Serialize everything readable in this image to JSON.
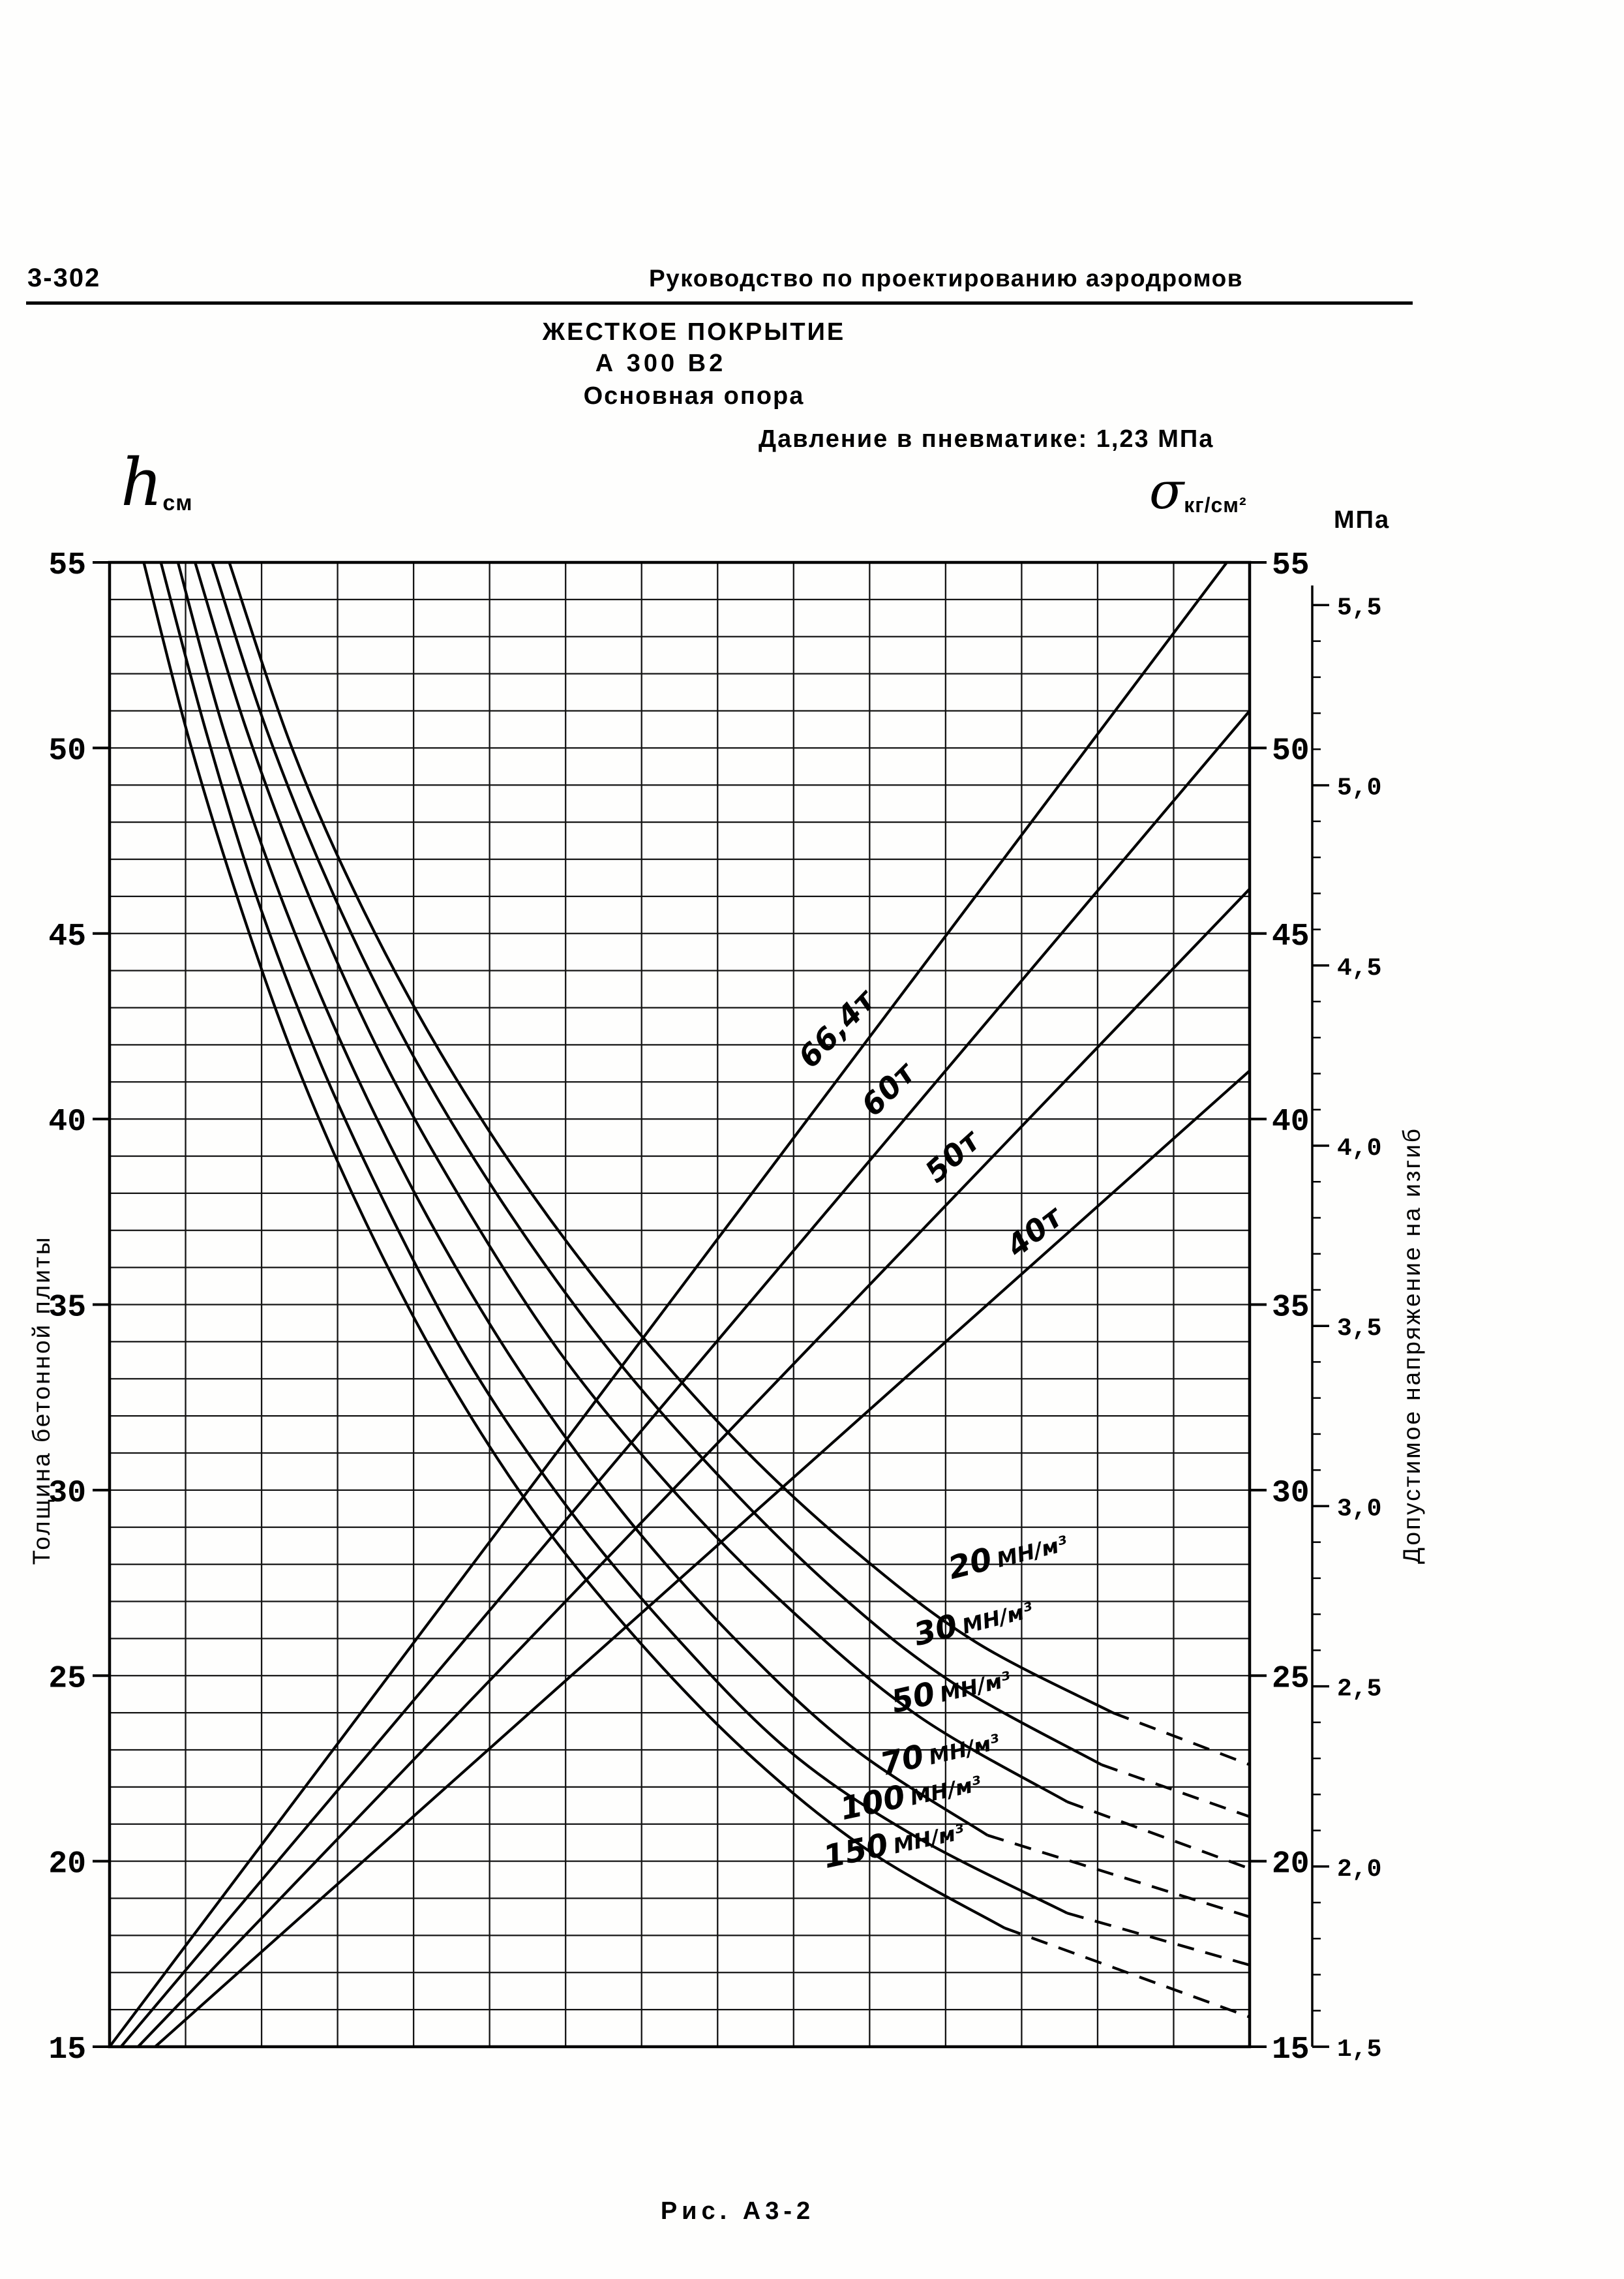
{
  "page": {
    "number": "3-302",
    "doc_title": "Руководство по проектированию аэродромов",
    "caption": "Рис. А3-2"
  },
  "titles": {
    "surface": "ЖЕСТКОЕ ПОКРЫТИЕ",
    "aircraft": "А 300 В2",
    "gear": "Основная опора",
    "pressure": "Давление в пневматике: 1,23 МПа"
  },
  "axes": {
    "left_symbol": "h",
    "left_symbol_unit": "см",
    "left_title": "Толщина бетонной плиты",
    "right_symbol": "σ",
    "right_symbol_unit": "кг/см²",
    "mpa_unit": "МПа",
    "right_title": "Допустимое напряжение на изгиб"
  },
  "chart_data": {
    "type": "line",
    "title": "Номограмма: жесткое покрытие А 300 В2, основная опора, давление в пневматике 1,23 МПа",
    "x": {
      "gridline_columns": 15,
      "tick_labels_visible": false
    },
    "y_left": {
      "label": "Толщина бетонной плиты h, см",
      "min": 15,
      "max": 55,
      "major_step": 5,
      "minor_step": 1
    },
    "y_right": {
      "label": "Допустимое напряжение на изгиб σ, кг/см²",
      "min": 15,
      "max": 55,
      "major_step": 5
    },
    "y_mpa": {
      "label": "МПа",
      "min": 1.5,
      "max": 5.5,
      "major_step": 0.5,
      "minor_step": 0.1,
      "map": {
        "v0": 1.5,
        "h0": 15.0,
        "v1": 5.5,
        "h1": 53.85
      }
    },
    "load_lines": [
      {
        "label": "66,4т",
        "points": [
          [
            0,
            15
          ],
          [
            98,
            55
          ]
        ],
        "label_pos": {
          "u": 62,
          "h": 41.2,
          "angle": -46
        }
      },
      {
        "label": "60т",
        "points": [
          [
            1,
            15
          ],
          [
            100,
            51
          ]
        ],
        "label_pos": {
          "u": 67.5,
          "h": 39.9,
          "angle": -45
        }
      },
      {
        "label": "50т",
        "points": [
          [
            2.5,
            15
          ],
          [
            100,
            46.2
          ]
        ],
        "label_pos": {
          "u": 73,
          "h": 38.1,
          "angle": -42
        }
      },
      {
        "label": "40т",
        "points": [
          [
            4,
            15
          ],
          [
            100,
            41.3
          ]
        ],
        "label_pos": {
          "u": 80,
          "h": 36.1,
          "angle": -38
        }
      }
    ],
    "soil_curves": [
      {
        "label": "20 МН/м³",
        "points": [
          [
            10.5,
            55
          ],
          [
            16,
            50
          ],
          [
            22,
            45.8
          ],
          [
            29,
            41.8
          ],
          [
            37,
            38
          ],
          [
            46,
            34.4
          ],
          [
            56,
            31
          ],
          [
            66,
            28.2
          ],
          [
            76,
            25.9
          ],
          [
            88,
            24.0
          ],
          [
            100,
            22.6
          ]
        ],
        "dash_from_index": 9,
        "label_pos": {
          "u": 74,
          "h": 27.4,
          "angle": -14
        }
      },
      {
        "label": "30 МН/м³",
        "points": [
          [
            9,
            55
          ],
          [
            14,
            50.3
          ],
          [
            20,
            45.8
          ],
          [
            27,
            41.5
          ],
          [
            35,
            37.5
          ],
          [
            44,
            33.7
          ],
          [
            54,
            30.2
          ],
          [
            64,
            27.2
          ],
          [
            74,
            24.8
          ],
          [
            87,
            22.6
          ],
          [
            100,
            21.2
          ]
        ],
        "dash_from_index": 9,
        "label_pos": {
          "u": 71,
          "h": 25.6,
          "angle": -14
        }
      },
      {
        "label": "50 МН/м³",
        "points": [
          [
            7.5,
            55
          ],
          [
            12,
            50.5
          ],
          [
            17.5,
            46
          ],
          [
            24,
            41.6
          ],
          [
            31.5,
            37.5
          ],
          [
            40,
            33.5
          ],
          [
            50,
            29.8
          ],
          [
            60,
            26.7
          ],
          [
            71,
            23.9
          ],
          [
            84,
            21.6
          ],
          [
            100,
            19.8
          ]
        ],
        "dash_from_index": 9,
        "label_pos": {
          "u": 69,
          "h": 23.8,
          "angle": -13
        }
      },
      {
        "label": "70 МН/м³",
        "points": [
          [
            6,
            55
          ],
          [
            10,
            50.5
          ],
          [
            15,
            46
          ],
          [
            21,
            41.6
          ],
          [
            28,
            37.3
          ],
          [
            36,
            33.2
          ],
          [
            45,
            29.4
          ],
          [
            54.5,
            26.1
          ],
          [
            65,
            23.1
          ],
          [
            77,
            20.7
          ],
          [
            100,
            18.5
          ]
        ],
        "dash_from_index": 9,
        "label_pos": {
          "u": 68,
          "h": 22.1,
          "angle": -13
        }
      },
      {
        "label": "100 МН/м³",
        "points": [
          [
            4.5,
            55
          ],
          [
            8.5,
            50.4
          ],
          [
            13,
            45.9
          ],
          [
            18.5,
            41.5
          ],
          [
            25,
            37.2
          ],
          [
            32,
            33.2
          ],
          [
            40.5,
            29.4
          ],
          [
            49.5,
            26.1
          ],
          [
            59.5,
            23.0
          ],
          [
            70.5,
            20.7
          ],
          [
            84,
            18.6
          ],
          [
            100,
            17.2
          ]
        ],
        "dash_from_index": 10,
        "label_pos": {
          "u": 64.5,
          "h": 20.9,
          "angle": -12
        }
      },
      {
        "label": "150 МН/м³",
        "points": [
          [
            3,
            55
          ],
          [
            7,
            50.2
          ],
          [
            11.5,
            45.7
          ],
          [
            16.5,
            41.4
          ],
          [
            22.5,
            37.2
          ],
          [
            29.5,
            33.1
          ],
          [
            37.5,
            29.3
          ],
          [
            46.5,
            25.9
          ],
          [
            56,
            22.9
          ],
          [
            66.5,
            20.3
          ],
          [
            78.5,
            18.2
          ],
          [
            100,
            15.8
          ]
        ],
        "dash_from_index": 10,
        "label_pos": {
          "u": 63,
          "h": 19.6,
          "angle": -12
        }
      }
    ]
  }
}
